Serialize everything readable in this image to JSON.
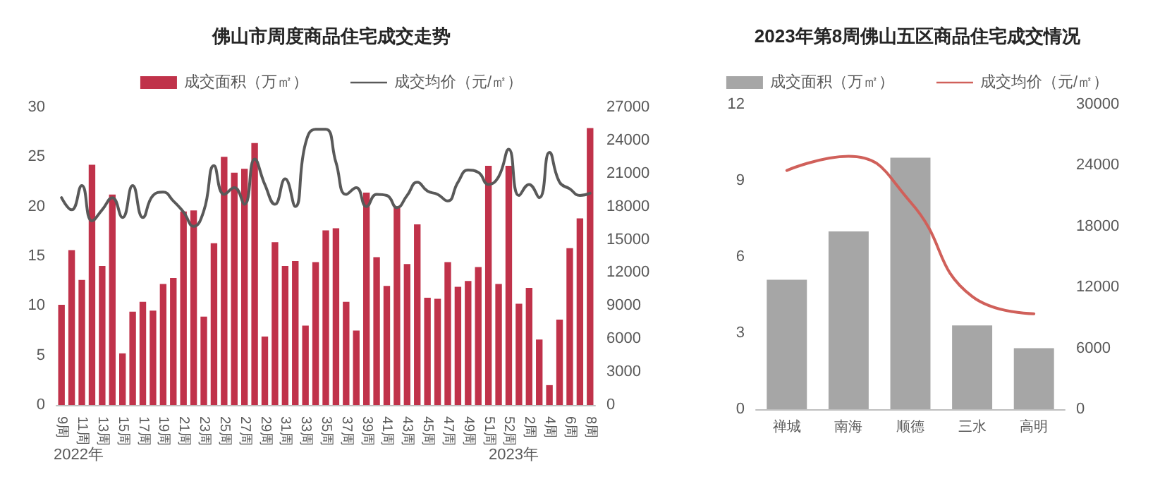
{
  "chart_data": [
    {
      "type": "bar",
      "title": "佛山市周度商品住宅成交走势",
      "categories": [
        "9周",
        null,
        "11周",
        null,
        "13周",
        null,
        "15周",
        null,
        "17周",
        null,
        "19周",
        null,
        "21周",
        null,
        "23周",
        null,
        "25周",
        null,
        "27周",
        null,
        "29周",
        null,
        "31周",
        null,
        "33周",
        null,
        "35周",
        null,
        "37周",
        null,
        "39周",
        null,
        "41周",
        null,
        "43周",
        null,
        "45周",
        null,
        "47周",
        null,
        "49周",
        null,
        "51周",
        null,
        "52周",
        null,
        "2周",
        null,
        "4周",
        null,
        "6周",
        null,
        "8周"
      ],
      "series": [
        {
          "name": "成交面积（万㎡）",
          "color": "#c0324a",
          "values": [
            10.1,
            15.6,
            12.6,
            24.2,
            14.0,
            21.2,
            5.2,
            9.4,
            10.4,
            9.5,
            12.2,
            12.8,
            19.5,
            19.6,
            8.9,
            16.3,
            25.0,
            23.4,
            23.8,
            26.4,
            6.9,
            16.4,
            14.0,
            14.5,
            8.0,
            14.4,
            17.6,
            17.8,
            10.4,
            7.5,
            21.4,
            14.9,
            12.0,
            19.9,
            14.2,
            18.2,
            10.8,
            10.7,
            14.4,
            11.9,
            12.5,
            13.9,
            24.1,
            12.2,
            24.1,
            10.2,
            11.8,
            6.6,
            2.0,
            8.6,
            15.8,
            18.8,
            27.9
          ]
        },
        {
          "name": "成交均价（元/㎡）",
          "type": "line",
          "axis": "y2",
          "color": "#595959",
          "values": [
            18800,
            17700,
            19900,
            16700,
            17700,
            18800,
            17000,
            19900,
            17000,
            19000,
            19300,
            18500,
            17500,
            16200,
            17600,
            21700,
            19100,
            19700,
            18200,
            22300,
            20000,
            18200,
            20500,
            18000,
            23700,
            25000,
            25000,
            22000,
            19100,
            19700,
            18000,
            19100,
            19000,
            17900,
            19000,
            20200,
            19400,
            19100,
            18500,
            20200,
            21300,
            21100,
            20000,
            20700,
            23200,
            19000,
            20000,
            18800,
            22900,
            20200,
            19600,
            19000,
            19200
          ]
        }
      ],
      "ylim": [
        0,
        30
      ],
      "yticks": [
        0,
        5,
        10,
        15,
        20,
        25,
        30
      ],
      "y2lim": [
        0,
        27000
      ],
      "y2ticks": [
        0,
        3000,
        6000,
        9000,
        12000,
        15000,
        18000,
        21000,
        24000,
        27000
      ],
      "annotations": [
        "2022年",
        "2023年"
      ],
      "legend": "top",
      "grid": false,
      "marker": "none",
      "line_style": "solid"
    },
    {
      "type": "bar",
      "title": "2023年第8周佛山五区商品住宅成交情况",
      "categories": [
        "禅城",
        "南海",
        "顺德",
        "三水",
        "高明"
      ],
      "series": [
        {
          "name": "成交面积（万㎡）",
          "color": "#a6a6a6",
          "values": [
            5.1,
            7.0,
            9.9,
            3.3,
            2.4
          ]
        },
        {
          "name": "成交均价（元/㎡）",
          "type": "line",
          "axis": "y2",
          "color": "#d0605a",
          "values": [
            23500,
            24900,
            20400,
            11100,
            9400
          ]
        }
      ],
      "ylim": [
        0,
        12
      ],
      "yticks": [
        0,
        3,
        6,
        9,
        12
      ],
      "y2lim": [
        0,
        30000
      ],
      "y2ticks": [
        0,
        6000,
        12000,
        18000,
        24000,
        30000
      ],
      "legend": "top",
      "grid": false,
      "marker": "none",
      "line_style": "solid"
    }
  ]
}
